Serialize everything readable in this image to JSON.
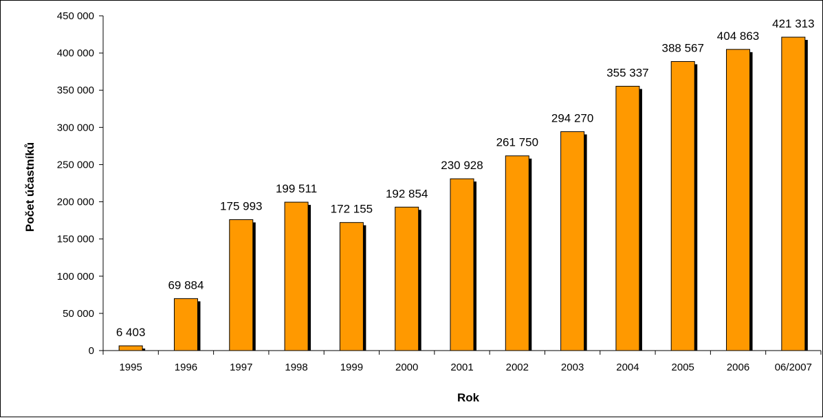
{
  "chart_data": {
    "type": "bar",
    "title": "",
    "xlabel": "Rok",
    "ylabel": "Počet účastníků",
    "categories": [
      "1995",
      "1996",
      "1997",
      "1998",
      "1999",
      "2000",
      "2001",
      "2002",
      "2003",
      "2004",
      "2005",
      "2006",
      "06/2007"
    ],
    "values": [
      6403,
      69884,
      175993,
      199511,
      172155,
      192854,
      230928,
      261750,
      294270,
      355337,
      388567,
      404863,
      421313
    ],
    "value_labels": [
      "6 403",
      "69 884",
      "175 993",
      "199 511",
      "172 155",
      "192 854",
      "230 928",
      "261 750",
      "294 270",
      "355 337",
      "388 567",
      "404 863",
      "421 313"
    ],
    "ylim": [
      0,
      450000
    ],
    "y_ticks": [
      0,
      50000,
      100000,
      150000,
      200000,
      250000,
      300000,
      350000,
      400000,
      450000
    ],
    "y_tick_labels": [
      "0",
      "50 000",
      "100 000",
      "150 000",
      "200 000",
      "250 000",
      "300 000",
      "350 000",
      "400 000",
      "450 000"
    ],
    "grid": false,
    "legend": "none",
    "bar_color": "#ff9900",
    "bar_outline_color": "#000000",
    "shadow_color": "#000000"
  }
}
